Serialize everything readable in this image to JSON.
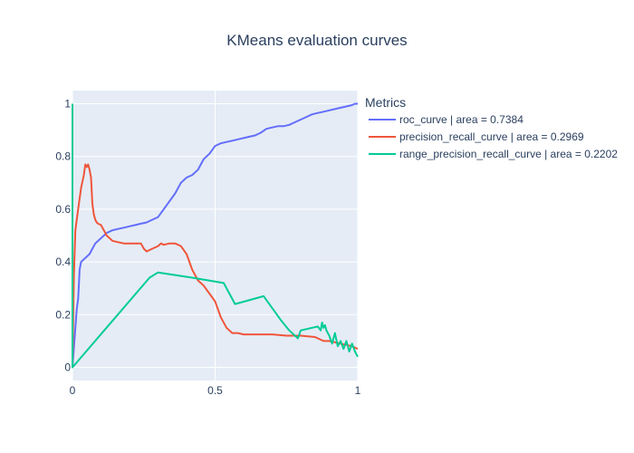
{
  "chart_data": {
    "type": "line",
    "title": "KMeans evaluation curves",
    "xlabel": "",
    "ylabel": "",
    "xlim": [
      0,
      1
    ],
    "ylim": [
      -0.05,
      1.05
    ],
    "xticks": [
      0,
      0.5,
      1
    ],
    "xtick_labels": [
      "0",
      "0.5",
      "1"
    ],
    "yticks": [
      0,
      0.2,
      0.4,
      0.6,
      0.8,
      1
    ],
    "ytick_labels": [
      "0",
      "0.2",
      "0.4",
      "0.6",
      "0.8",
      "1"
    ],
    "grid": true,
    "legend_position": "right",
    "legend_title": "Metrics",
    "plot_bg": "#e5ecf6",
    "series": [
      {
        "name": "roc_curve | area = 0.7384",
        "color": "#636efa",
        "x": [
          0,
          0.01,
          0.015,
          0.02,
          0.025,
          0.03,
          0.04,
          0.05,
          0.06,
          0.07,
          0.08,
          0.09,
          0.1,
          0.11,
          0.12,
          0.14,
          0.16,
          0.18,
          0.2,
          0.22,
          0.24,
          0.26,
          0.28,
          0.3,
          0.32,
          0.34,
          0.36,
          0.38,
          0.4,
          0.42,
          0.44,
          0.46,
          0.48,
          0.5,
          0.52,
          0.54,
          0.56,
          0.58,
          0.6,
          0.62,
          0.64,
          0.66,
          0.68,
          0.7,
          0.72,
          0.74,
          0.76,
          0.78,
          0.8,
          0.82,
          0.84,
          0.86,
          0.88,
          0.9,
          0.92,
          0.94,
          0.96,
          0.98,
          0.99,
          1
        ],
        "y": [
          0,
          0.15,
          0.22,
          0.26,
          0.37,
          0.4,
          0.41,
          0.42,
          0.43,
          0.45,
          0.47,
          0.48,
          0.49,
          0.5,
          0.51,
          0.52,
          0.525,
          0.53,
          0.535,
          0.54,
          0.545,
          0.55,
          0.56,
          0.57,
          0.6,
          0.63,
          0.66,
          0.7,
          0.72,
          0.73,
          0.75,
          0.79,
          0.81,
          0.84,
          0.85,
          0.855,
          0.86,
          0.865,
          0.87,
          0.875,
          0.88,
          0.89,
          0.905,
          0.91,
          0.915,
          0.915,
          0.92,
          0.93,
          0.94,
          0.95,
          0.96,
          0.965,
          0.97,
          0.975,
          0.98,
          0.985,
          0.99,
          0.995,
          1.0,
          1.0
        ]
      },
      {
        "name": "precision_recall_curve | area = 0.2969",
        "color": "#ef553b",
        "x": [
          0,
          0.005,
          0.01,
          0.02,
          0.03,
          0.04,
          0.045,
          0.05,
          0.055,
          0.06,
          0.065,
          0.07,
          0.075,
          0.08,
          0.085,
          0.09,
          0.1,
          0.11,
          0.12,
          0.13,
          0.14,
          0.16,
          0.18,
          0.2,
          0.22,
          0.24,
          0.25,
          0.26,
          0.28,
          0.3,
          0.31,
          0.32,
          0.34,
          0.36,
          0.38,
          0.4,
          0.42,
          0.44,
          0.46,
          0.48,
          0.5,
          0.52,
          0.54,
          0.56,
          0.58,
          0.6,
          0.65,
          0.7,
          0.75,
          0.8,
          0.85,
          0.88,
          0.9,
          0.92,
          0.94,
          0.96,
          0.98,
          1
        ],
        "y": [
          0,
          0.35,
          0.52,
          0.6,
          0.68,
          0.73,
          0.77,
          0.76,
          0.77,
          0.75,
          0.72,
          0.62,
          0.58,
          0.56,
          0.55,
          0.545,
          0.54,
          0.52,
          0.5,
          0.49,
          0.48,
          0.475,
          0.47,
          0.47,
          0.47,
          0.47,
          0.45,
          0.44,
          0.45,
          0.46,
          0.47,
          0.465,
          0.47,
          0.47,
          0.46,
          0.43,
          0.37,
          0.33,
          0.31,
          0.28,
          0.25,
          0.19,
          0.15,
          0.13,
          0.13,
          0.125,
          0.125,
          0.125,
          0.12,
          0.12,
          0.115,
          0.1,
          0.1,
          0.095,
          0.09,
          0.085,
          0.08,
          0.07
        ]
      },
      {
        "name": "range_precision_recall_curve | area = 0.2202",
        "color": "#00cc96",
        "x": [
          0,
          0,
          0,
          0.27,
          0.3,
          0.42,
          0.53,
          0.57,
          0.67,
          0.73,
          0.76,
          0.79,
          0.8,
          0.84,
          0.86,
          0.87,
          0.875,
          0.88,
          0.885,
          0.89,
          0.9,
          0.91,
          0.92,
          0.93,
          0.94,
          0.95,
          0.96,
          0.97,
          0.98,
          0.99,
          1
        ],
        "y": [
          1.0,
          0.2,
          0,
          0.34,
          0.36,
          0.34,
          0.32,
          0.24,
          0.27,
          0.18,
          0.14,
          0.11,
          0.14,
          0.15,
          0.155,
          0.14,
          0.17,
          0.15,
          0.16,
          0.14,
          0.12,
          0.09,
          0.13,
          0.08,
          0.1,
          0.07,
          0.1,
          0.06,
          0.09,
          0.06,
          0.04
        ]
      }
    ]
  }
}
